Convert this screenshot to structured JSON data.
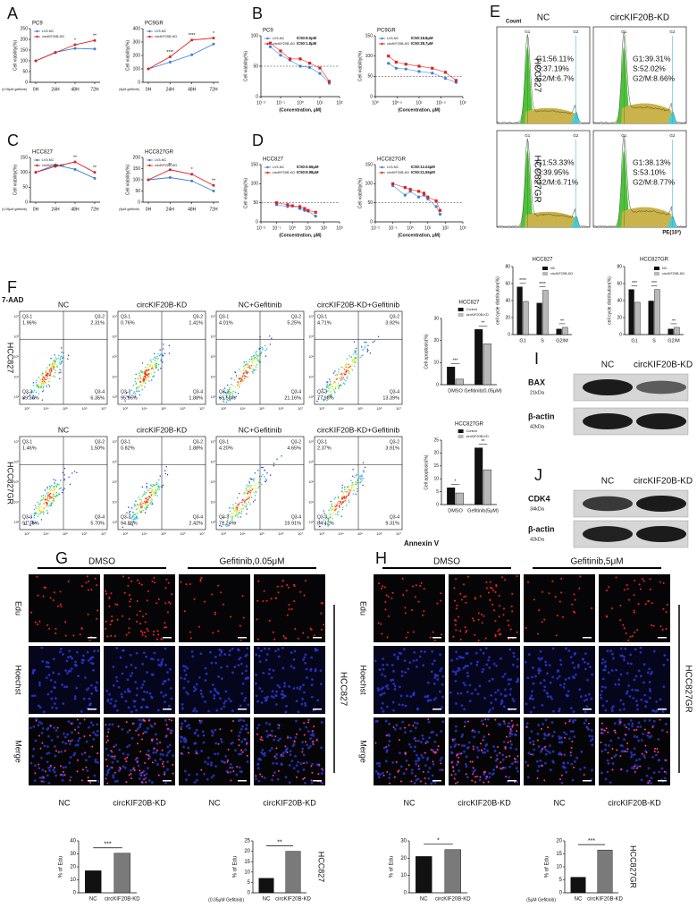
{
  "panel_letters": [
    "A",
    "B",
    "C",
    "D",
    "E",
    "F",
    "G",
    "H",
    "I",
    "J"
  ],
  "chart_data": [
    {
      "type": "line",
      "title": "PC9",
      "y_label": "Cell viability(%)",
      "x_note": "(0.05μM gefitinib)",
      "categories": [
        "0H",
        "24H",
        "48H",
        "72H"
      ],
      "series": [
        {
          "name": "LV3-NC",
          "color": "#3a7fd5",
          "values": [
            100,
            140,
            158,
            155
          ]
        },
        {
          "name": "circKIF20B-KD",
          "color": "#e02020",
          "values": [
            100,
            138,
            175,
            195
          ]
        }
      ],
      "significance": [
        null,
        null,
        "*",
        "**"
      ],
      "ylim": [
        0,
        250
      ],
      "yticks": [
        0,
        50,
        100,
        150,
        200,
        250
      ],
      "legend": "upper left"
    },
    {
      "type": "line",
      "title": "PC9GR",
      "y_label": "Cell viability(%)",
      "x_note": "(5μM gefitinib)",
      "categories": [
        "0H",
        "24H",
        "48H",
        "72H"
      ],
      "series": [
        {
          "name": "LV3-NC",
          "color": "#3a7fd5",
          "values": [
            100,
            150,
            205,
            285
          ]
        },
        {
          "name": "circKIF20B-KD",
          "color": "#e02020",
          "values": [
            100,
            190,
            315,
            330
          ]
        }
      ],
      "significance": [
        null,
        "****",
        "****",
        "*"
      ],
      "ylim": [
        0,
        400
      ],
      "yticks": [
        0,
        100,
        200,
        300,
        400
      ],
      "legend": "upper left"
    },
    {
      "type": "line",
      "title": "HCC827",
      "y_label": "Cell viability(%)",
      "x_note": "(0.05μM gefitinib)",
      "categories": [
        "0H",
        "24H",
        "48H",
        "72H"
      ],
      "series": [
        {
          "name": "LV3-NC",
          "color": "#3a7fd5",
          "values": [
            100,
            125,
            110,
            80
          ]
        },
        {
          "name": "circKIF20B-KD",
          "color": "#e02020",
          "values": [
            100,
            120,
            135,
            100
          ]
        }
      ],
      "significance": [
        null,
        null,
        "**",
        "**"
      ],
      "ylim": [
        0,
        150
      ],
      "yticks": [
        0,
        50,
        100,
        150
      ],
      "legend": "upper left"
    },
    {
      "type": "line",
      "title": "HCC827GR",
      "y_label": "Cell viability(%)",
      "x_note": "(5μM gefitinib)",
      "categories": [
        "0H",
        "24H",
        "48H",
        "72H"
      ],
      "series": [
        {
          "name": "LV3-NC",
          "color": "#3a7fd5",
          "values": [
            100,
            110,
            95,
            50
          ]
        },
        {
          "name": "circKIF20B-KD",
          "color": "#e02020",
          "values": [
            100,
            145,
            125,
            75
          ]
        }
      ],
      "significance": [
        null,
        "**",
        "*",
        "**"
      ],
      "ylim": [
        0,
        200
      ],
      "yticks": [
        0,
        50,
        100,
        150,
        200
      ],
      "legend": "upper left"
    },
    {
      "type": "scatter",
      "title": "PC9",
      "y_label": "Cell viability(%)",
      "x_label": "(Concentration, μM)",
      "xscale": "log",
      "x": [
        0.03,
        0.1,
        0.3,
        1,
        3,
        10,
        30
      ],
      "series": [
        {
          "name": "LV3-NC",
          "ic50_label": "IC50:8.0μM",
          "color": "#3a7fd5",
          "marker": "circle",
          "values": [
            82,
            68,
            60,
            50,
            48,
            38,
            22
          ]
        },
        {
          "name": "circKIF20B-KD",
          "ic50_label": "IC50:1.8μM",
          "color": "#e02020",
          "marker": "square",
          "values": [
            88,
            75,
            62,
            62,
            55,
            47,
            25
          ]
        }
      ],
      "reference_line": 50,
      "xlim": [
        0.01,
        100
      ],
      "xticks": [
        {
          "value": 0.01,
          "label": "10⁻²"
        },
        {
          "value": 0.1,
          "label": "10⁻¹"
        },
        {
          "value": 1,
          "label": "10⁰"
        },
        {
          "value": 10,
          "label": "10¹"
        },
        {
          "value": 100,
          "label": "10²"
        }
      ],
      "ylim": [
        0,
        100
      ],
      "yticks": [
        0,
        50,
        100
      ],
      "legend": "upper left"
    },
    {
      "type": "scatter",
      "title": "PC9GR",
      "y_label": "Cell viability(%)",
      "x_label": "(Concentration, μM)",
      "xscale": "log",
      "x": [
        2,
        3,
        5,
        10,
        20,
        40,
        70
      ],
      "series": [
        {
          "name": "LV3-NC",
          "ic50_label": "IC50:18.8μM",
          "color": "#3a7fd5",
          "marker": "circle",
          "values": [
            82,
            70,
            68,
            62,
            58,
            45,
            35
          ]
        },
        {
          "name": "circKIF20B-KD",
          "ic50_label": "IC50:38.7μM",
          "color": "#e02020",
          "marker": "square",
          "values": [
            100,
            85,
            80,
            75,
            70,
            60,
            40
          ]
        }
      ],
      "reference_line": 50,
      "xlim": [
        1,
        100
      ],
      "xticks": [
        {
          "value": 1,
          "label": "10⁰"
        },
        {
          "value": 3.162,
          "label": "10⁰·⁵"
        },
        {
          "value": 10,
          "label": "10¹"
        },
        {
          "value": 31.62,
          "label": "10¹·⁵"
        },
        {
          "value": 100,
          "label": "10²"
        }
      ],
      "ylim": [
        0,
        150
      ],
      "yticks": [
        0,
        50,
        100,
        150
      ],
      "legend": "upper left"
    },
    {
      "type": "scatter",
      "title": "HCC827",
      "y_label": "Cell viability(%)",
      "x_label": "(Concentration, μM)",
      "xscale": "log",
      "x": [
        0.1,
        0.5,
        1,
        3,
        6,
        10,
        30
      ],
      "series": [
        {
          "name": "LV3-NC",
          "ic50_label": "IC50:6.56μM",
          "color": "#3a7fd5",
          "marker": "circle",
          "values": [
            45,
            40,
            42,
            35,
            30,
            28,
            15
          ]
        },
        {
          "name": "circKIF20B-KD",
          "ic50_label": "IC50:8.98μM",
          "color": "#e02020",
          "marker": "square",
          "values": [
            50,
            45,
            42,
            40,
            35,
            30,
            25
          ]
        }
      ],
      "reference_line": 50,
      "xlim": [
        0.01,
        1000
      ],
      "xticks": [
        {
          "value": 0.01,
          "label": "10⁻²"
        },
        {
          "value": 0.1,
          "label": "10⁻¹"
        },
        {
          "value": 1,
          "label": "10⁰"
        },
        {
          "value": 10,
          "label": "10¹"
        },
        {
          "value": 100,
          "label": "10²"
        },
        {
          "value": 1000,
          "label": "10³"
        }
      ],
      "ylim": [
        0,
        150
      ],
      "yticks": [
        0,
        50,
        100,
        150
      ],
      "legend": "upper left"
    },
    {
      "type": "scatter",
      "title": "HCC827GR",
      "y_label": "Cell viability(%)",
      "x_label": "(Concentration, μM)",
      "xscale": "log",
      "x": [
        0.1,
        0.5,
        1,
        3,
        6,
        10,
        30,
        50
      ],
      "series": [
        {
          "name": "LV3-NC",
          "ic50_label": "IC50:12.24μM",
          "color": "#3a7fd5",
          "marker": "circle",
          "values": [
            95,
            70,
            80,
            65,
            70,
            60,
            40,
            20
          ]
        },
        {
          "name": "circKIF20B-KD",
          "ic50_label": "IC50:21.55μM",
          "color": "#e02020",
          "marker": "square",
          "values": [
            100,
            90,
            85,
            80,
            75,
            65,
            55,
            30
          ]
        }
      ],
      "reference_line": 50,
      "xlim": [
        0.01,
        1000
      ],
      "xticks": [
        {
          "value": 0.01,
          "label": "10⁻²"
        },
        {
          "value": 0.1,
          "label": "10⁻¹"
        },
        {
          "value": 1,
          "label": "10⁰"
        },
        {
          "value": 10,
          "label": "10¹"
        },
        {
          "value": 100,
          "label": "10²"
        },
        {
          "value": 1000,
          "label": "10³"
        }
      ],
      "ylim": [
        0,
        150
      ],
      "yticks": [
        0,
        50,
        100,
        150
      ],
      "legend": "upper left"
    },
    {
      "type": "bar",
      "title": "HCC827",
      "y_label": "cell cycle distribution(%)",
      "categories": [
        "G1",
        "S",
        "G2/M"
      ],
      "series": [
        {
          "name": "NC",
          "color": "#111111",
          "values": [
            56,
            37,
            6.5
          ]
        },
        {
          "name": "circKIF20B-KD",
          "color": "#b8b8b8",
          "values": [
            39,
            52,
            8.5
          ]
        }
      ],
      "significance": [
        "****",
        "****",
        "**"
      ],
      "ylim": [
        0,
        80
      ],
      "yticks": [
        0,
        20,
        40,
        60,
        80
      ],
      "legend": "upper right"
    },
    {
      "type": "bar",
      "title": "HCC827GR",
      "y_label": "cell cycle distribution(%)",
      "categories": [
        "G1",
        "S",
        "G2/M"
      ],
      "series": [
        {
          "name": "NC",
          "color": "#111111",
          "values": [
            53,
            39.5,
            6.5
          ]
        },
        {
          "name": "circKIF20B-KD",
          "color": "#b8b8b8",
          "values": [
            38,
            53,
            8.5
          ]
        }
      ],
      "significance": [
        "***",
        "***",
        "**"
      ],
      "ylim": [
        0,
        80
      ],
      "yticks": [
        0,
        20,
        40,
        60,
        80
      ],
      "legend": "upper right"
    },
    {
      "type": "bar",
      "title": "HCC827",
      "y_label": "Cell apoptosis(%)",
      "categories": [
        "DMSO",
        "Gefitinib(0.05μM)"
      ],
      "series": [
        {
          "name": "Control",
          "color": "#111111",
          "values": [
            8,
            25
          ]
        },
        {
          "name": "circKIF20B-KD",
          "color": "#b8b8b8",
          "values": [
            2.5,
            18.5
          ]
        }
      ],
      "significance": [
        "***",
        "**"
      ],
      "ylim": [
        0,
        30
      ],
      "yticks": [
        0,
        10,
        20,
        30
      ],
      "legend": "top"
    },
    {
      "type": "bar",
      "title": "HCC827GR",
      "y_label": "Cell apoptosis(%)",
      "categories": [
        "DMSO",
        "Gefitinib(5μM)"
      ],
      "series": [
        {
          "name": "Control",
          "color": "#111111",
          "values": [
            6.5,
            22
          ]
        },
        {
          "name": "circKIF20B-KD",
          "color": "#b8b8b8",
          "values": [
            4.5,
            13.5
          ]
        }
      ],
      "significance": [
        "*",
        "**"
      ],
      "ylim": [
        0,
        25
      ],
      "yticks": [
        0,
        5,
        10,
        15,
        20,
        25
      ],
      "legend": "top"
    },
    {
      "type": "bar",
      "y_label": "% of Edu",
      "categories": [
        "NC",
        "circKIF20B-KD"
      ],
      "values": [
        17,
        30.5
      ],
      "colors": [
        "#111111",
        "#7a7a7a"
      ],
      "significance": "***",
      "ylim": [
        0,
        40
      ],
      "yticks": [
        0,
        10,
        20,
        30,
        40
      ]
    },
    {
      "type": "bar",
      "y_label": "% of Edu",
      "x_note": "(0.05μM Gefitinib)",
      "side_label": "HCC827",
      "categories": [
        "NC",
        "circKIF20B-KD"
      ],
      "values": [
        7,
        20
      ],
      "colors": [
        "#111111",
        "#7a7a7a"
      ],
      "significance": "**",
      "ylim": [
        0,
        25
      ],
      "yticks": [
        0,
        5,
        10,
        15,
        20,
        25
      ]
    },
    {
      "type": "bar",
      "y_label": "% of Edu",
      "categories": [
        "NC",
        "circKIF20B-KD"
      ],
      "values": [
        21,
        25
      ],
      "colors": [
        "#111111",
        "#7a7a7a"
      ],
      "significance": "*",
      "ylim": [
        0,
        30
      ],
      "yticks": [
        0,
        10,
        20,
        30
      ]
    },
    {
      "type": "bar",
      "y_label": "% of Edu",
      "x_note": "(5μM Gefitinib)",
      "side_label": "HCC827GR",
      "categories": [
        "NC",
        "circKIF20B-KD"
      ],
      "values": [
        6,
        16.5
      ],
      "colors": [
        "#111111",
        "#7a7a7a"
      ],
      "significance": "***",
      "ylim": [
        0,
        20
      ],
      "yticks": [
        0,
        5,
        10,
        15,
        20
      ]
    }
  ],
  "cell_cycle": {
    "count_label": "Count",
    "x_label": "PE(10³)",
    "gate_labels": [
      "G1",
      "G2"
    ],
    "columns": [
      "NC",
      "circKIF20B-KD"
    ],
    "rows": [
      {
        "label": "HCC827",
        "cells": [
          [
            "G1:56.11%",
            "S:37.19%",
            "G2/M:6.7%"
          ],
          [
            "G1:39.31%",
            "S:52.02%",
            "G2/M:8.66%"
          ]
        ]
      },
      {
        "label": "HCC827GR",
        "cells": [
          [
            "G1:53.33%",
            "S:39.95%",
            "G2/M:6.71%"
          ],
          [
            "G1:38.13%",
            "S:53.10%",
            "G2/M:8.77%"
          ]
        ]
      }
    ]
  },
  "flow": {
    "y_label": "7-AAD",
    "x_label": "Annexin V",
    "quadrant_names": [
      "Q3-1",
      "Q3-2",
      "Q3-3",
      "Q3-4"
    ],
    "ticks": [
      "10³",
      "10⁴",
      "10⁵",
      "10⁶",
      "10⁷"
    ],
    "rows": [
      {
        "label": "HCC827",
        "titles": [
          "NC",
          "circKIF20B-KD",
          "NC+Gefitinib",
          "circKIF20B-KD+Gefitinib"
        ],
        "quadrants": [
          [
            "1.96%",
            "2.31%",
            "89.39%",
            "6.35%"
          ],
          [
            "0.76%",
            "1.41%",
            "95.96%",
            "1.88%"
          ],
          [
            "4.01%",
            "5.25%",
            "69.58%",
            "21.16%"
          ],
          [
            "4.71%",
            "3.92%",
            "77.98%",
            "13.39%"
          ]
        ]
      },
      {
        "label": "HCC827GR",
        "titles": [
          "NC",
          "circKIF20B-KD",
          "NC+Gefitinib",
          "circKIF20B-KD+Gefitinib"
        ],
        "quadrants": [
          [
            "1.46%",
            "1.50%",
            "91.35%",
            "5.70%"
          ],
          [
            "0.82%",
            "1.88%",
            "94.88%",
            "2.42%"
          ],
          [
            "4.20%",
            "4.65%",
            "71.24%",
            "19.91%"
          ],
          [
            "2.37%",
            "3.91%",
            "84.42%",
            "9.31%"
          ]
        ]
      }
    ]
  },
  "western": [
    {
      "columns": [
        "NC",
        "circKIF20B-KD"
      ],
      "bands": [
        {
          "name": "BAX",
          "size": "21kDa"
        },
        {
          "name": "β-actin",
          "size": "42kDa"
        }
      ]
    },
    {
      "columns": [
        "NC",
        "circKIF20B-KD"
      ],
      "bands": [
        {
          "name": "CDK4",
          "size": "34kDa"
        },
        {
          "name": "β-actin",
          "size": "42kDa"
        }
      ]
    }
  ],
  "microscopy": [
    {
      "groups": [
        "DMSO",
        "Gefitinib,0.05μM"
      ],
      "rows": [
        "Edu",
        "Hoechst",
        "Merge"
      ],
      "columns": [
        "NC",
        "circKIF20B-KD",
        "NC",
        "circKIF20B-KD"
      ],
      "cell_line": "HCC827"
    },
    {
      "groups": [
        "DMSO",
        "Gefitinib,5μM"
      ],
      "rows": [
        "Edu",
        "Hoechst",
        "Merge"
      ],
      "columns": [
        "NC",
        "circKIF20B-KD",
        "NC",
        "circKIF20B-KD"
      ],
      "cell_line": "HCC827GR"
    }
  ]
}
